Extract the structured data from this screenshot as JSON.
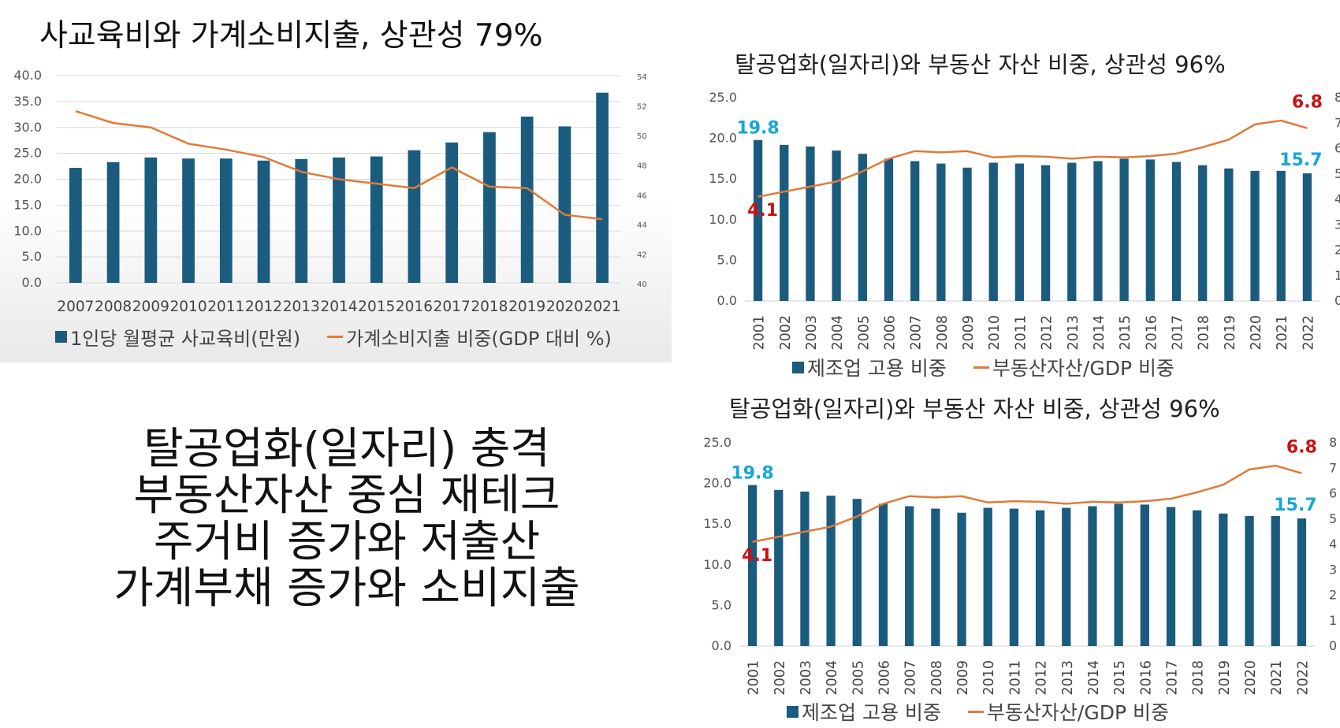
{
  "left_panel": {
    "title": "사교육비와 가계소비지출, 상관성 79%",
    "legend": {
      "bar": "1인당 월평균 사교육비(만원)",
      "line": "가계소비지출 비중(GDP 대비 %)"
    }
  },
  "right_top": {
    "title": "탈공업화(일자리)와 부동산 자산 비중, 상관성 96%",
    "legend": {
      "bar": "제조업 고용 비중",
      "line": "부동산자산/GDP 비중"
    }
  },
  "right_bottom": {
    "title": "탈공업화(일자리)와 부동산 자산 비중, 상관성 96%",
    "legend": {
      "bar": "제조업 고용 비중",
      "line": "부동산자산/GDP 비중"
    }
  },
  "text_block": {
    "lines": [
      "탈공업화(일자리) 충격",
      "부동산자산 중심 재테크",
      "주거비 증가와 저출산",
      "가계부채 증가와 소비지출"
    ]
  },
  "colors": {
    "bar": "#1b5c7e",
    "line": "#e07b39",
    "label_blue": "#16a6d8",
    "label_red": "#cc1111"
  },
  "chart_data": [
    {
      "type": "bar",
      "title": "사교육비와 가계소비지출, 상관성 79%",
      "categories": [
        "2007",
        "2008",
        "2009",
        "2010",
        "2011",
        "2012",
        "2013",
        "2014",
        "2015",
        "2016",
        "2017",
        "2018",
        "2019",
        "2020",
        "2021"
      ],
      "y_ticks": [
        "40.0",
        "35.0",
        "30.0",
        "25.0",
        "20.0",
        "15.0",
        "10.0",
        "5.0",
        "0.0"
      ],
      "y2_ticks": [
        "54",
        "52",
        "50",
        "48",
        "46",
        "44",
        "42",
        "40"
      ],
      "ylim": [
        0,
        40
      ],
      "y2lim": [
        40,
        54
      ],
      "grid": true,
      "legend_position": "bottom",
      "series": [
        {
          "name": "1인당 월평균 사교육비(만원)",
          "type": "bar",
          "axis": "left",
          "values": [
            22.2,
            23.3,
            24.2,
            24.0,
            24.0,
            23.6,
            23.9,
            24.2,
            24.4,
            25.6,
            27.1,
            29.1,
            32.1,
            30.2,
            36.7
          ]
        },
        {
          "name": "가계소비지출 비중(GDP 대비 %)",
          "type": "line",
          "axis": "right",
          "values": [
            51.6,
            50.8,
            50.5,
            49.4,
            49.0,
            48.5,
            47.5,
            47.0,
            46.7,
            46.4,
            47.8,
            46.5,
            46.4,
            44.6,
            44.3
          ]
        }
      ]
    },
    {
      "type": "bar",
      "title": "탈공업화(일자리)와 부동산 자산 비중, 상관성 96%",
      "categories": [
        "2001",
        "2002",
        "2003",
        "2004",
        "2005",
        "2006",
        "2007",
        "2008",
        "2009",
        "2010",
        "2011",
        "2012",
        "2013",
        "2014",
        "2015",
        "2016",
        "2017",
        "2018",
        "2019",
        "2020",
        "2021",
        "2022"
      ],
      "y_ticks": [
        "25.0",
        "20.0",
        "15.0",
        "10.0",
        "5.0",
        "0.0"
      ],
      "y2_ticks": [
        "8",
        "7",
        "6",
        "5",
        "4",
        "3",
        "2",
        "1",
        "0"
      ],
      "ylim": [
        0,
        25
      ],
      "y2lim": [
        0,
        8
      ],
      "grid": false,
      "legend_position": "bottom",
      "annotations": [
        "19.8",
        "15.7",
        "4.1",
        "6.8"
      ],
      "series": [
        {
          "name": "제조업 고용 비중",
          "type": "bar",
          "axis": "left",
          "values": [
            19.8,
            19.2,
            19.0,
            18.5,
            18.1,
            17.5,
            17.2,
            16.9,
            16.4,
            17.0,
            16.9,
            16.7,
            17.0,
            17.2,
            17.5,
            17.4,
            17.1,
            16.7,
            16.3,
            16.0,
            16.0,
            15.7
          ]
        },
        {
          "name": "부동산자산/GDP 비중",
          "type": "line",
          "axis": "right",
          "values": [
            4.1,
            4.3,
            4.5,
            4.7,
            5.1,
            5.6,
            5.9,
            5.85,
            5.9,
            5.65,
            5.7,
            5.68,
            5.6,
            5.68,
            5.65,
            5.7,
            5.8,
            6.05,
            6.35,
            6.95,
            7.1,
            6.8
          ]
        }
      ]
    },
    {
      "type": "bar",
      "title": "탈공업화(일자리)와 부동산 자산 비중, 상관성 96%",
      "categories": [
        "2001",
        "2002",
        "2003",
        "2004",
        "2005",
        "2006",
        "2007",
        "2008",
        "2009",
        "2010",
        "2011",
        "2012",
        "2013",
        "2014",
        "2015",
        "2016",
        "2017",
        "2018",
        "2019",
        "2020",
        "2021",
        "2022"
      ],
      "y_ticks": [
        "25.0",
        "20.0",
        "15.0",
        "10.0",
        "5.0",
        "0.0"
      ],
      "y2_ticks": [
        "8",
        "7",
        "6",
        "5",
        "4",
        "3",
        "2",
        "1",
        "0"
      ],
      "ylim": [
        0,
        25
      ],
      "y2lim": [
        0,
        8
      ],
      "grid": false,
      "legend_position": "bottom",
      "annotations": [
        "19.8",
        "15.7",
        "4.1",
        "6.8"
      ],
      "series": [
        {
          "name": "제조업 고용 비중",
          "type": "bar",
          "axis": "left",
          "values": [
            19.8,
            19.2,
            19.0,
            18.5,
            18.1,
            17.5,
            17.2,
            16.9,
            16.4,
            17.0,
            16.9,
            16.7,
            17.0,
            17.2,
            17.5,
            17.4,
            17.1,
            16.7,
            16.3,
            16.0,
            16.0,
            15.7
          ]
        },
        {
          "name": "부동산자산/GDP 비중",
          "type": "line",
          "axis": "right",
          "values": [
            4.1,
            4.3,
            4.5,
            4.7,
            5.1,
            5.6,
            5.9,
            5.85,
            5.9,
            5.65,
            5.7,
            5.68,
            5.6,
            5.68,
            5.65,
            5.7,
            5.8,
            6.05,
            6.35,
            6.95,
            7.1,
            6.8
          ]
        }
      ]
    }
  ]
}
